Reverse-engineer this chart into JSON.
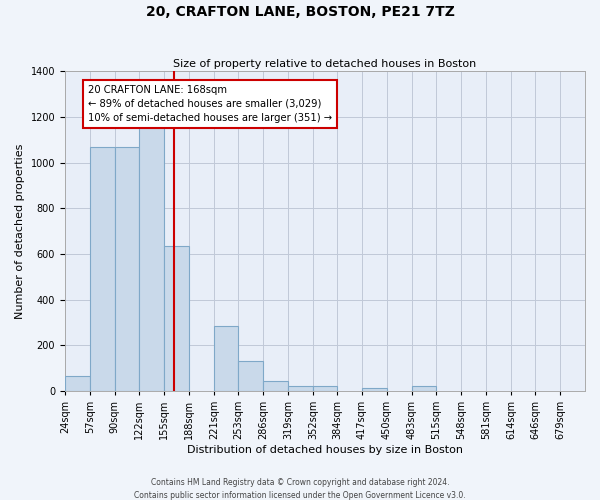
{
  "title": "20, CRAFTON LANE, BOSTON, PE21 7TZ",
  "subtitle": "Size of property relative to detached houses in Boston",
  "xlabel": "Distribution of detached houses by size in Boston",
  "ylabel": "Number of detached properties",
  "bar_color": "#c9d9ea",
  "bar_edge_color": "#7fa8c8",
  "bin_labels": [
    "24sqm",
    "57sqm",
    "90sqm",
    "122sqm",
    "155sqm",
    "188sqm",
    "221sqm",
    "253sqm",
    "286sqm",
    "319sqm",
    "352sqm",
    "384sqm",
    "417sqm",
    "450sqm",
    "483sqm",
    "515sqm",
    "548sqm",
    "581sqm",
    "614sqm",
    "646sqm",
    "679sqm"
  ],
  "bar_values": [
    65,
    1070,
    1070,
    1160,
    635,
    0,
    285,
    130,
    45,
    20,
    20,
    0,
    15,
    0,
    20,
    0,
    0,
    0,
    0,
    0,
    0
  ],
  "ylim": [
    0,
    1400
  ],
  "yticks": [
    0,
    200,
    400,
    600,
    800,
    1000,
    1200,
    1400
  ],
  "bin_edges": [
    24,
    57,
    90,
    122,
    155,
    188,
    221,
    253,
    286,
    319,
    352,
    384,
    417,
    450,
    483,
    515,
    548,
    581,
    614,
    646,
    679,
    712
  ],
  "vline_x": 168,
  "annotation_title": "20 CRAFTON LANE: 168sqm",
  "annotation_line1": "← 89% of detached houses are smaller (3,029)",
  "annotation_line2": "10% of semi-detached houses are larger (351) →",
  "annotation_box_color": "#cc0000",
  "vline_color": "#cc0000",
  "footer1": "Contains HM Land Registry data © Crown copyright and database right 2024.",
  "footer2": "Contains public sector information licensed under the Open Government Licence v3.0.",
  "background_color": "#f0f4fa",
  "plot_bg_color": "#e8eef8",
  "grid_color": "#c0c8d8",
  "title_fontsize": 10,
  "subtitle_fontsize": 8,
  "xlabel_fontsize": 8,
  "ylabel_fontsize": 8,
  "tick_fontsize": 7,
  "footer_fontsize": 5.5
}
